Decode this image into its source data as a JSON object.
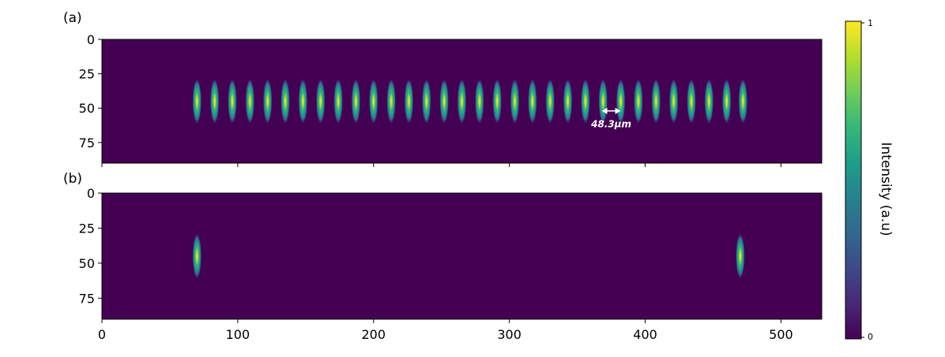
{
  "chart_data": [
    {
      "type": "heatmap",
      "panel_label": "(a)",
      "colormap": "viridis",
      "xlim": [
        0,
        530
      ],
      "ylim": [
        90,
        0
      ],
      "y_ticks": [
        "0",
        "25",
        "50",
        "75"
      ],
      "spots": {
        "x_centers": [
          70,
          83,
          96,
          109,
          122,
          135,
          148,
          161,
          174,
          187,
          200,
          213,
          226,
          239,
          252,
          265,
          278,
          291,
          304,
          317,
          330,
          343,
          356,
          369,
          382,
          395,
          408,
          421,
          434,
          447,
          460,
          472
        ],
        "y_center": 45,
        "peak": 1
      },
      "annotation": {
        "text": "48.3μm",
        "x_from": 368,
        "x_to": 382,
        "y": 52
      }
    },
    {
      "type": "heatmap",
      "panel_label": "(b)",
      "colormap": "viridis",
      "xlim": [
        0,
        530
      ],
      "ylim": [
        90,
        0
      ],
      "y_ticks": [
        "0",
        "25",
        "50",
        "75"
      ],
      "x_ticks": [
        "0",
        "100",
        "200",
        "300",
        "400",
        "500"
      ],
      "spots": {
        "x_centers": [
          70,
          470
        ],
        "y_center": 45,
        "peak": 1
      }
    }
  ],
  "colorbar": {
    "label": "Intensity (a.u)",
    "max_label": "1",
    "min_label": "0",
    "colors": [
      "#440154",
      "#482878",
      "#3e4989",
      "#31688e",
      "#26828e",
      "#1f9e89",
      "#35b779",
      "#6ece58",
      "#b5de2b",
      "#fde725"
    ]
  }
}
